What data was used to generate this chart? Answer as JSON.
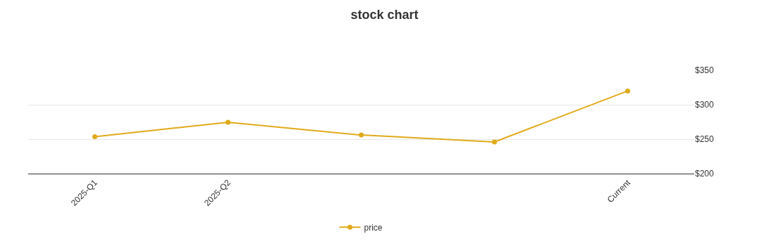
{
  "chart_data": {
    "type": "line",
    "title": "stock chart",
    "categories": [
      "2025-Q1",
      "2025-Q2",
      null,
      null,
      "Current"
    ],
    "series": [
      {
        "name": "price",
        "color": "#e0aa1b",
        "values": [
          253.5,
          274.5,
          256,
          246,
          320
        ]
      }
    ],
    "ylim": [
      200,
      350
    ],
    "yticks": [
      {
        "value": 200,
        "label": "$200"
      },
      {
        "value": 250,
        "label": "$250"
      },
      {
        "value": 300,
        "label": "$300"
      },
      {
        "value": 350,
        "label": "$350"
      }
    ],
    "grid": "y",
    "legend": "bottom",
    "marker": "circle",
    "line_style": "solid"
  }
}
